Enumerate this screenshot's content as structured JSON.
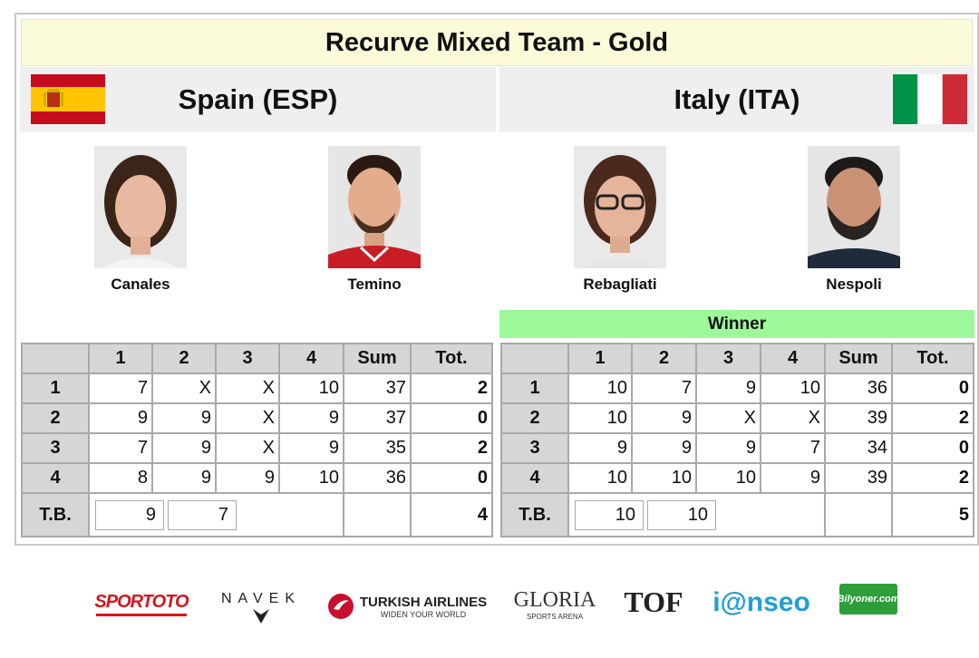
{
  "title": "Recurve Mixed Team - Gold",
  "teams": {
    "left": {
      "name": "Spain (ESP)",
      "flag_icon": "spain-flag-icon",
      "flag_colors": [
        "#c60b1e",
        "#ffc400"
      ],
      "athletes": [
        {
          "name": "Canales"
        },
        {
          "name": "Temino"
        }
      ],
      "score_header": [
        "",
        "1",
        "2",
        "3",
        "4",
        "Sum",
        "Tot."
      ],
      "rows": [
        {
          "end": "1",
          "arrows": [
            "7",
            "X",
            "X",
            "10"
          ],
          "sum": "37",
          "tot": "2"
        },
        {
          "end": "2",
          "arrows": [
            "9",
            "9",
            "X",
            "9"
          ],
          "sum": "37",
          "tot": "0"
        },
        {
          "end": "3",
          "arrows": [
            "7",
            "9",
            "X",
            "9"
          ],
          "sum": "35",
          "tot": "2"
        },
        {
          "end": "4",
          "arrows": [
            "8",
            "9",
            "9",
            "10"
          ],
          "sum": "36",
          "tot": "0"
        }
      ],
      "tiebreak": {
        "label": "T.B.",
        "arrows": [
          "9",
          "7"
        ],
        "tot": "4"
      }
    },
    "right": {
      "name": "Italy (ITA)",
      "flag_icon": "italy-flag-icon",
      "flag_colors": [
        "#009246",
        "#ffffff",
        "#ce2b37"
      ],
      "winner_label": "Winner",
      "athletes": [
        {
          "name": "Rebagliati"
        },
        {
          "name": "Nespoli"
        }
      ],
      "score_header": [
        "",
        "1",
        "2",
        "3",
        "4",
        "Sum",
        "Tot."
      ],
      "rows": [
        {
          "end": "1",
          "arrows": [
            "10",
            "7",
            "9",
            "10"
          ],
          "sum": "36",
          "tot": "0"
        },
        {
          "end": "2",
          "arrows": [
            "10",
            "9",
            "X",
            "X"
          ],
          "sum": "39",
          "tot": "2"
        },
        {
          "end": "3",
          "arrows": [
            "9",
            "9",
            "9",
            "7"
          ],
          "sum": "34",
          "tot": "0"
        },
        {
          "end": "4",
          "arrows": [
            "10",
            "10",
            "10",
            "9"
          ],
          "sum": "39",
          "tot": "2"
        }
      ],
      "tiebreak": {
        "label": "T.B.",
        "arrows": [
          "10",
          "10"
        ],
        "tot": "5"
      }
    }
  },
  "sponsors": [
    {
      "name": "SPORTOTO",
      "icon": "sportoto-logo"
    },
    {
      "name": "NAVEK",
      "icon": "navek-logo"
    },
    {
      "name": "TURKISH AIRLINES",
      "tagline": "WIDEN YOUR WORLD",
      "icon": "turkish-airlines-logo"
    },
    {
      "name": "GLORIA",
      "tagline": "SPORTS ARENA",
      "icon": "gloria-logo"
    },
    {
      "name": "TOF",
      "icon": "tof-logo"
    },
    {
      "name": "i@nseo",
      "icon": "ianseo-logo"
    },
    {
      "name": "Bilyoner.com",
      "icon": "bilyoner-logo"
    }
  ]
}
